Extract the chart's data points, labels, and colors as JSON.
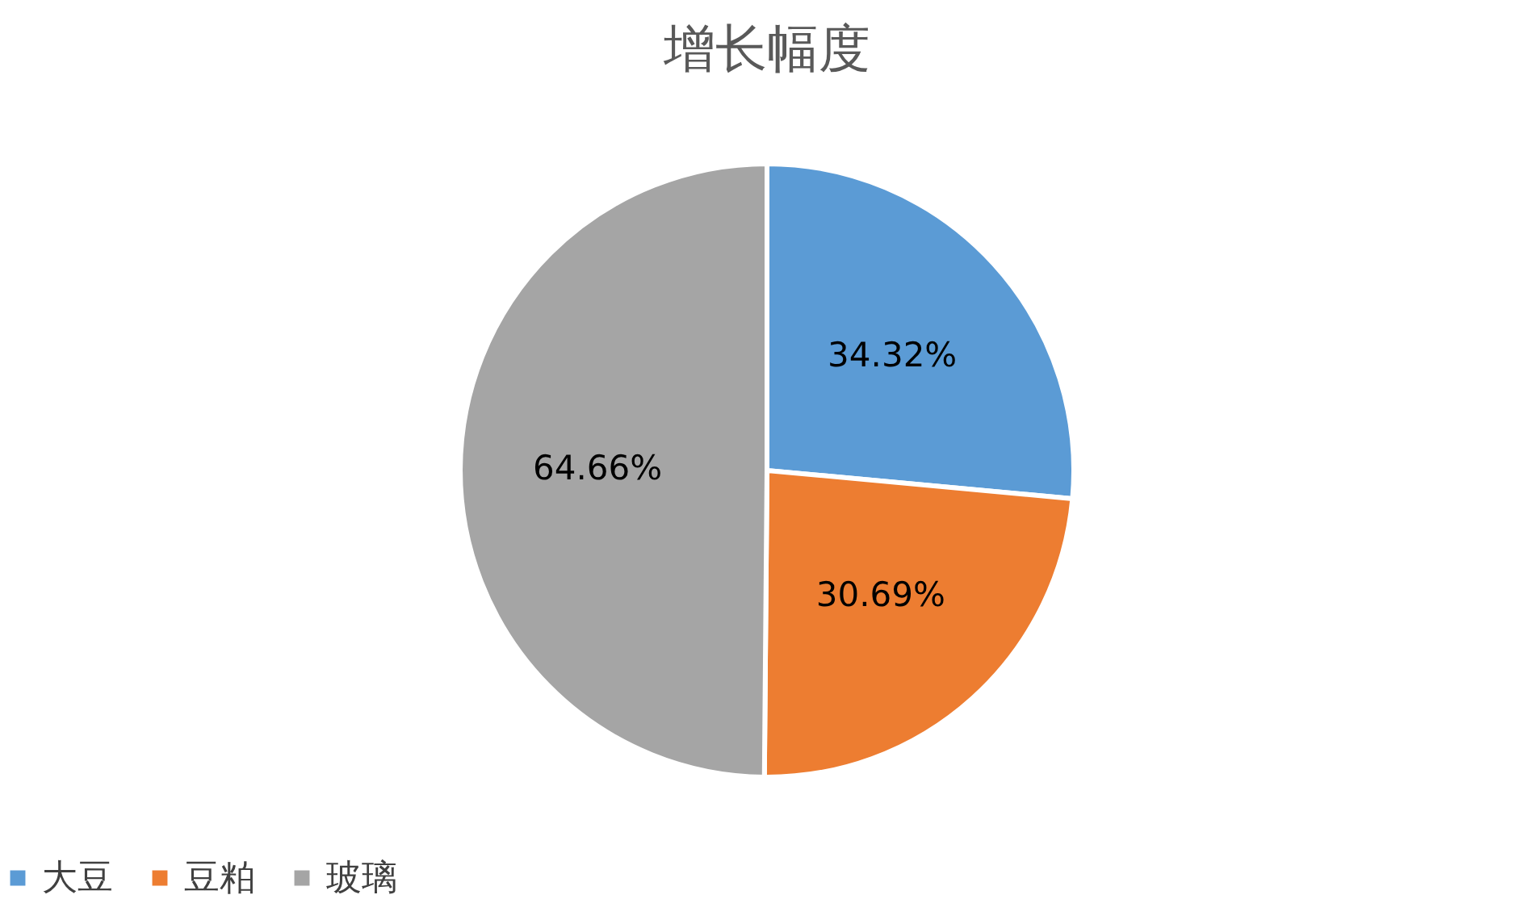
{
  "chart_data": {
    "type": "pie",
    "title": "增长幅度",
    "categories": [
      "大豆",
      "豆粕",
      "玻璃"
    ],
    "values": [
      34.32,
      30.69,
      64.66
    ],
    "colors": [
      "#5b9bd5",
      "#ed7d31",
      "#a5a5a5"
    ],
    "value_labels": [
      "34.32%",
      "30.69%",
      "64.66%"
    ],
    "legend": "bottom"
  }
}
